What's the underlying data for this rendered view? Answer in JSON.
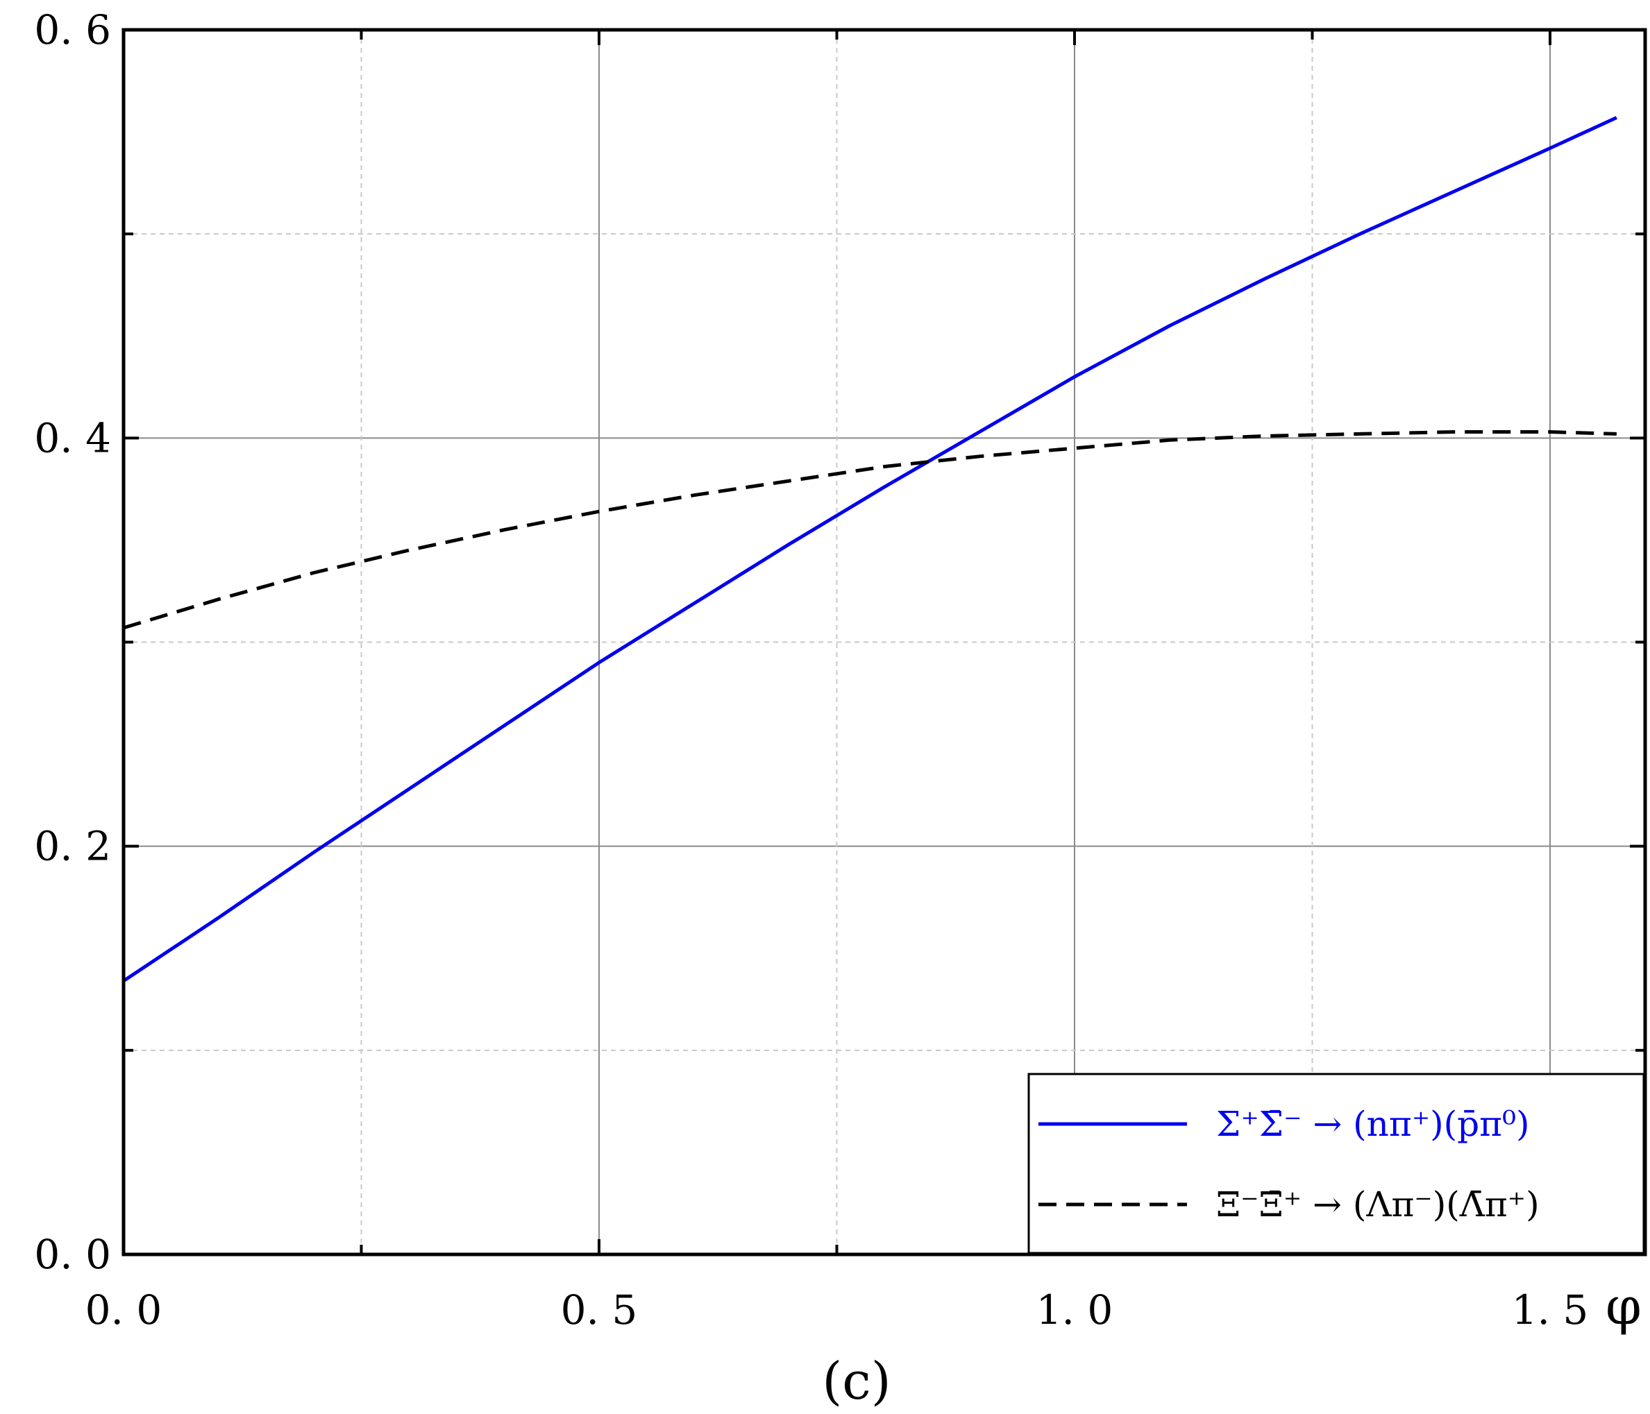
{
  "chart_data": {
    "type": "line",
    "panel_label": "(c)",
    "xlabel": "φ",
    "ylabel": "",
    "xlim": [
      0.0,
      1.6
    ],
    "ylim": [
      0.0,
      0.6
    ],
    "x_ticks": [
      0.0,
      0.5,
      1.0,
      1.5
    ],
    "x_tick_labels": [
      "0. 0",
      "0. 5",
      "1. 0",
      "1. 5"
    ],
    "y_ticks": [
      0.0,
      0.2,
      0.4,
      0.6
    ],
    "y_tick_labels": [
      "0. 0",
      "0. 2",
      "0. 4",
      "0. 6"
    ],
    "grid": true,
    "legend_position": "bottom-right",
    "series": [
      {
        "name": "Σ⁺Σ̄⁻ → (nπ⁺)(p̄π⁰)",
        "color": "#0000ee",
        "style": "solid",
        "x": [
          0.0,
          0.1,
          0.2,
          0.3,
          0.4,
          0.5,
          0.6,
          0.7,
          0.8,
          0.9,
          1.0,
          1.1,
          1.2,
          1.3,
          1.4,
          1.5,
          1.57
        ],
        "y": [
          0.134,
          0.165,
          0.197,
          0.228,
          0.259,
          0.29,
          0.319,
          0.348,
          0.376,
          0.403,
          0.43,
          0.455,
          0.478,
          0.5,
          0.521,
          0.542,
          0.557
        ]
      },
      {
        "name": "Ξ⁻Ξ̄⁺ → (Λπ⁻)(Λ̄π⁺)",
        "color": "#000000",
        "style": "dashed",
        "x": [
          0.0,
          0.1,
          0.2,
          0.3,
          0.4,
          0.5,
          0.6,
          0.7,
          0.8,
          0.9,
          1.0,
          1.1,
          1.2,
          1.3,
          1.4,
          1.5,
          1.57
        ],
        "y": [
          0.307,
          0.321,
          0.334,
          0.345,
          0.355,
          0.364,
          0.372,
          0.379,
          0.386,
          0.391,
          0.395,
          0.399,
          0.401,
          0.402,
          0.403,
          0.403,
          0.402
        ]
      }
    ]
  }
}
